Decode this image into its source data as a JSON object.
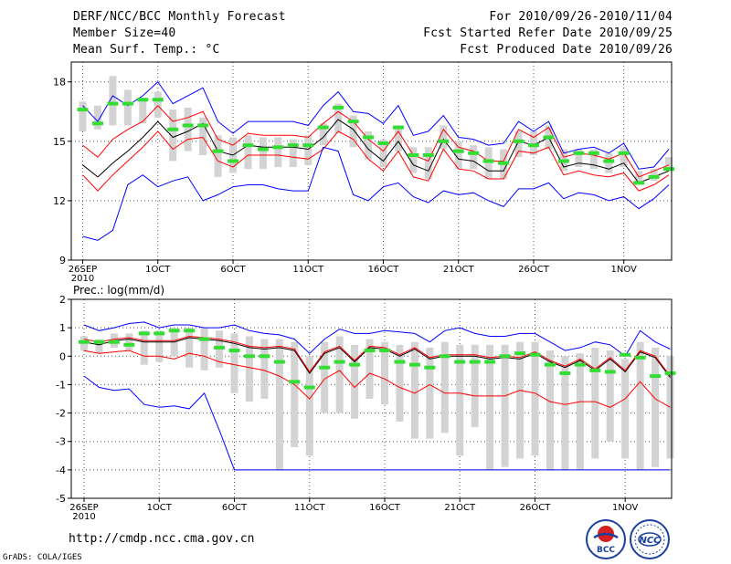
{
  "header": {
    "title": "DERF/NCC/BCC Monthly Forecast",
    "member_size": "Member Size=40",
    "variable": "Mean Surf. Temp.: °C",
    "period": "For 2010/09/26-2010/11/04",
    "fcst_started": "Fcst Started Refer Date 2010/09/25",
    "fcst_produced": "Fcst Produced Date 2010/09/26"
  },
  "footer": {
    "url": "http://cmdp.ncc.cma.gov.cn",
    "grads": "GrADS: COLA/IGES",
    "logo_bcc_text": "BCC",
    "logo_ncc_text": "NCC"
  },
  "colors": {
    "mean": "#000000",
    "spread": "#ff0000",
    "extreme": "#0000ff",
    "box": "#d3d3d3",
    "median": "#33dd33",
    "grid": "#555555"
  },
  "chart_data": [
    {
      "type": "line",
      "title": "Mean Surf. Temp.: °C",
      "x": [
        0,
        1,
        2,
        3,
        4,
        5,
        6,
        7,
        8,
        9,
        10,
        11,
        12,
        13,
        14,
        15,
        16,
        17,
        18,
        19,
        20,
        21,
        22,
        23,
        24,
        25,
        26,
        27,
        28,
        29,
        30,
        31,
        32,
        33,
        34,
        35,
        36,
        37,
        38,
        39
      ],
      "x_ticks": [
        {
          "x": 0,
          "label": "26SEP",
          "sub": "2010"
        },
        {
          "x": 5,
          "label": "1OCT"
        },
        {
          "x": 10,
          "label": "6OCT"
        },
        {
          "x": 15,
          "label": "11OCT"
        },
        {
          "x": 20,
          "label": "16OCT"
        },
        {
          "x": 25,
          "label": "21OCT"
        },
        {
          "x": 30,
          "label": "26OCT"
        },
        {
          "x": 36,
          "label": "1NOV"
        }
      ],
      "ylim": [
        9,
        19
      ],
      "y_ticks": [
        9,
        12,
        15,
        18
      ],
      "grid": true,
      "series": [
        {
          "name": "ensemble mean",
          "color": "#000000",
          "values": [
            13.8,
            13.2,
            13.9,
            14.5,
            15.2,
            16.0,
            15.2,
            15.5,
            15.9,
            14.5,
            14.3,
            14.8,
            14.7,
            14.7,
            14.7,
            14.6,
            15.2,
            16.1,
            15.6,
            14.6,
            14.0,
            15.0,
            13.8,
            13.5,
            15.1,
            14.1,
            14.0,
            13.5,
            13.5,
            15.0,
            14.8,
            15.2,
            13.7,
            13.9,
            13.8,
            13.6,
            13.9,
            12.9,
            13.2,
            13.5
          ]
        },
        {
          "name": "mean + spread",
          "color": "#ff0000",
          "values": [
            14.8,
            14.2,
            15.1,
            15.6,
            16.0,
            16.8,
            16.0,
            16.2,
            16.5,
            15.1,
            14.8,
            15.4,
            15.3,
            15.3,
            15.3,
            15.2,
            15.9,
            16.5,
            16.0,
            15.1,
            14.5,
            15.5,
            14.3,
            14.0,
            15.6,
            14.7,
            14.5,
            14.0,
            14.0,
            15.6,
            15.2,
            15.7,
            14.2,
            14.4,
            14.3,
            14.1,
            14.4,
            13.2,
            13.5,
            13.8
          ]
        },
        {
          "name": "mean - spread",
          "color": "#ff0000",
          "values": [
            13.3,
            12.5,
            13.3,
            14.0,
            14.7,
            15.5,
            14.6,
            15.1,
            15.2,
            14.0,
            13.7,
            14.3,
            14.3,
            14.3,
            14.2,
            14.1,
            14.6,
            15.5,
            15.1,
            14.1,
            13.5,
            14.5,
            13.2,
            13.0,
            14.6,
            13.6,
            13.5,
            13.1,
            13.1,
            14.5,
            14.4,
            14.7,
            13.3,
            13.5,
            13.3,
            13.2,
            13.4,
            12.5,
            12.8,
            13.3
          ]
        },
        {
          "name": "ensemble max",
          "color": "#0000ff",
          "values": [
            16.8,
            16.0,
            17.3,
            16.8,
            17.3,
            18.0,
            16.9,
            17.3,
            17.7,
            16.0,
            15.4,
            16.0,
            16.0,
            16.0,
            16.0,
            15.8,
            16.8,
            17.5,
            16.5,
            16.4,
            15.9,
            16.8,
            15.3,
            15.5,
            16.3,
            15.2,
            15.1,
            14.8,
            14.9,
            16.0,
            15.5,
            16.0,
            14.4,
            14.6,
            14.7,
            14.4,
            14.9,
            13.6,
            13.7,
            14.6
          ]
        },
        {
          "name": "ensemble min",
          "color": "#0000ff",
          "values": [
            10.2,
            10.0,
            10.5,
            12.8,
            13.3,
            12.7,
            13.0,
            13.2,
            12.0,
            12.3,
            12.7,
            12.8,
            12.8,
            12.6,
            12.5,
            12.5,
            14.7,
            14.5,
            12.3,
            12.0,
            12.7,
            12.9,
            12.2,
            11.9,
            12.5,
            12.3,
            12.4,
            12.0,
            11.7,
            12.6,
            12.6,
            12.9,
            12.1,
            12.4,
            12.3,
            12.0,
            12.2,
            11.6,
            12.1,
            12.8
          ]
        }
      ],
      "boxes": {
        "low": [
          15.5,
          15.6,
          15.8,
          15.8,
          15.9,
          16.2,
          14.0,
          14.5,
          14.3,
          13.2,
          13.4,
          13.6,
          13.6,
          13.7,
          13.7,
          13.8,
          14.8,
          15.4,
          14.7,
          14.1,
          13.7,
          14.5,
          13.4,
          13.1,
          14.6,
          13.6,
          13.6,
          13.1,
          13.1,
          14.2,
          14.3,
          14.6,
          13.5,
          13.7,
          13.6,
          13.4,
          13.7,
          12.8,
          13.0,
          13.5
        ],
        "high": [
          17.0,
          16.8,
          18.3,
          17.6,
          17.2,
          17.5,
          16.6,
          16.7,
          16.2,
          15.3,
          15.2,
          15.3,
          15.2,
          15.2,
          15.1,
          15.3,
          15.9,
          16.9,
          16.3,
          15.5,
          15.1,
          15.8,
          14.7,
          14.7,
          15.8,
          15.0,
          14.8,
          14.7,
          14.6,
          15.5,
          15.5,
          15.8,
          14.6,
          14.6,
          14.6,
          14.4,
          14.7,
          13.5,
          13.6,
          14.2
        ],
        "median": [
          16.6,
          15.9,
          16.9,
          16.9,
          17.1,
          17.1,
          15.6,
          15.8,
          15.8,
          14.5,
          14.0,
          14.8,
          14.6,
          14.7,
          14.8,
          14.8,
          15.7,
          16.7,
          16.0,
          15.2,
          14.9,
          15.7,
          14.3,
          14.3,
          15.0,
          14.5,
          14.4,
          14.0,
          13.9,
          15.0,
          14.8,
          15.2,
          14.0,
          14.4,
          14.4,
          14.0,
          14.4,
          12.9,
          13.2,
          13.6
        ]
      }
    },
    {
      "type": "line",
      "title": "Prec.: log(mm/d)",
      "x": [
        0,
        1,
        2,
        3,
        4,
        5,
        6,
        7,
        8,
        9,
        10,
        11,
        12,
        13,
        14,
        15,
        16,
        17,
        18,
        19,
        20,
        21,
        22,
        23,
        24,
        25,
        26,
        27,
        28,
        29,
        30,
        31,
        32,
        33,
        34,
        35,
        36,
        37,
        38,
        39
      ],
      "x_ticks": [
        {
          "x": 0,
          "label": "26SEP",
          "sub": "2010"
        },
        {
          "x": 5,
          "label": "1OCT"
        },
        {
          "x": 10,
          "label": "6OCT"
        },
        {
          "x": 15,
          "label": "11OCT"
        },
        {
          "x": 20,
          "label": "16OCT"
        },
        {
          "x": 25,
          "label": "21OCT"
        },
        {
          "x": 30,
          "label": "26OCT"
        },
        {
          "x": 36,
          "label": "1NOV"
        }
      ],
      "ylim": [
        -5,
        2
      ],
      "y_ticks": [
        -5,
        -4,
        -3,
        -2,
        -1,
        0,
        1,
        2
      ],
      "grid": true,
      "series": [
        {
          "name": "ensemble mean",
          "color": "#000000",
          "values": [
            0.5,
            0.4,
            0.55,
            0.6,
            0.5,
            0.5,
            0.5,
            0.65,
            0.6,
            0.55,
            0.45,
            0.3,
            0.25,
            0.3,
            0.2,
            -0.6,
            0.1,
            0.3,
            -0.2,
            0.3,
            0.25,
            0.0,
            0.25,
            -0.1,
            0.0,
            0.0,
            0.0,
            -0.1,
            -0.05,
            -0.1,
            0.1,
            -0.2,
            -0.4,
            -0.15,
            -0.5,
            -0.1,
            -0.55,
            0.15,
            -0.05,
            -0.75
          ]
        },
        {
          "name": "mean + spread",
          "color": "#ff0000",
          "values": [
            0.6,
            0.5,
            0.6,
            0.65,
            0.55,
            0.55,
            0.55,
            0.7,
            0.65,
            0.6,
            0.5,
            0.35,
            0.3,
            0.35,
            0.25,
            -0.55,
            0.15,
            0.35,
            -0.15,
            0.35,
            0.3,
            0.05,
            0.3,
            -0.05,
            0.05,
            0.05,
            0.05,
            -0.05,
            0.0,
            -0.05,
            0.15,
            -0.15,
            -0.35,
            -0.1,
            -0.45,
            -0.05,
            -0.5,
            0.2,
            0.0,
            -0.7
          ]
        },
        {
          "name": "mean - spread",
          "color": "#ff0000",
          "values": [
            0.2,
            0.1,
            0.15,
            0.2,
            0.0,
            0.0,
            -0.1,
            0.1,
            0.0,
            -0.2,
            -0.3,
            -0.4,
            -0.5,
            -0.7,
            -1.0,
            -1.5,
            -0.8,
            -0.5,
            -1.1,
            -0.6,
            -0.8,
            -1.1,
            -1.3,
            -1.0,
            -1.3,
            -1.3,
            -1.4,
            -1.4,
            -1.4,
            -1.2,
            -1.3,
            -1.6,
            -1.7,
            -1.6,
            -1.6,
            -1.8,
            -1.5,
            -0.9,
            -1.5,
            -1.8
          ]
        },
        {
          "name": "ensemble max",
          "color": "#0000ff",
          "values": [
            1.1,
            0.9,
            1.0,
            1.15,
            1.2,
            1.0,
            1.1,
            1.1,
            1.0,
            1.0,
            1.1,
            0.9,
            0.8,
            0.75,
            0.6,
            0.1,
            0.6,
            0.95,
            0.8,
            0.8,
            0.9,
            0.85,
            0.8,
            0.5,
            0.9,
            1.0,
            0.8,
            0.7,
            0.7,
            0.8,
            0.8,
            0.5,
            0.2,
            0.3,
            0.5,
            0.4,
            0.0,
            0.9,
            0.5,
            0.25
          ]
        },
        {
          "name": "ensemble min",
          "color": "#0000ff",
          "values": [
            -0.7,
            -1.1,
            -1.2,
            -1.15,
            -1.7,
            -1.8,
            -1.75,
            -1.85,
            -1.3,
            -2.6,
            -4.0,
            -4.0,
            -4.0,
            -4.0,
            -4.0,
            -4.0,
            -4.0,
            -4.0,
            -4.0,
            -4.0,
            -4.0,
            -4.0,
            -4.0,
            -4.0,
            -4.0,
            -4.0,
            -4.0,
            -4.0,
            -4.0,
            -4.0,
            -4.0,
            -4.0,
            -4.0,
            -4.0,
            -4.0,
            -4.0,
            -4.0,
            -4.0,
            -4.0,
            -4.0
          ]
        }
      ],
      "boxes": {
        "low": [
          0.2,
          0.1,
          0.3,
          0.2,
          -0.3,
          -0.2,
          0.0,
          -0.4,
          -0.5,
          -0.4,
          -1.3,
          -1.6,
          -1.5,
          -4.0,
          -3.2,
          -3.5,
          -2.0,
          -2.0,
          -2.2,
          -1.5,
          -1.7,
          -2.3,
          -2.9,
          -2.9,
          -2.7,
          -3.5,
          -2.5,
          -4.0,
          -3.9,
          -3.6,
          -3.5,
          -4.0,
          -4.0,
          -4.0,
          -3.6,
          -3.0,
          -3.6,
          -4.0,
          -3.9,
          -3.6
        ],
        "high": [
          0.7,
          0.6,
          0.8,
          0.8,
          0.9,
          0.9,
          1.0,
          1.0,
          1.0,
          0.9,
          0.8,
          0.7,
          0.6,
          0.6,
          0.5,
          0.0,
          0.5,
          0.7,
          0.4,
          0.6,
          0.5,
          0.4,
          0.5,
          0.3,
          0.5,
          0.4,
          0.4,
          0.4,
          0.4,
          0.5,
          0.5,
          0.2,
          0.0,
          0.1,
          0.3,
          0.2,
          -0.1,
          0.5,
          0.3,
          0.0
        ],
        "median": [
          0.5,
          0.5,
          0.5,
          0.4,
          0.8,
          0.8,
          0.9,
          0.9,
          0.6,
          0.3,
          0.2,
          0.0,
          0.0,
          -0.2,
          -0.9,
          -1.1,
          -0.4,
          -0.2,
          -0.3,
          0.2,
          0.2,
          -0.2,
          -0.3,
          -0.4,
          0.0,
          -0.2,
          -0.2,
          -0.2,
          0.0,
          0.1,
          0.05,
          -0.3,
          -0.6,
          -0.3,
          -0.5,
          -0.55,
          0.05,
          -0.05,
          -0.7,
          -0.6
        ]
      }
    }
  ]
}
